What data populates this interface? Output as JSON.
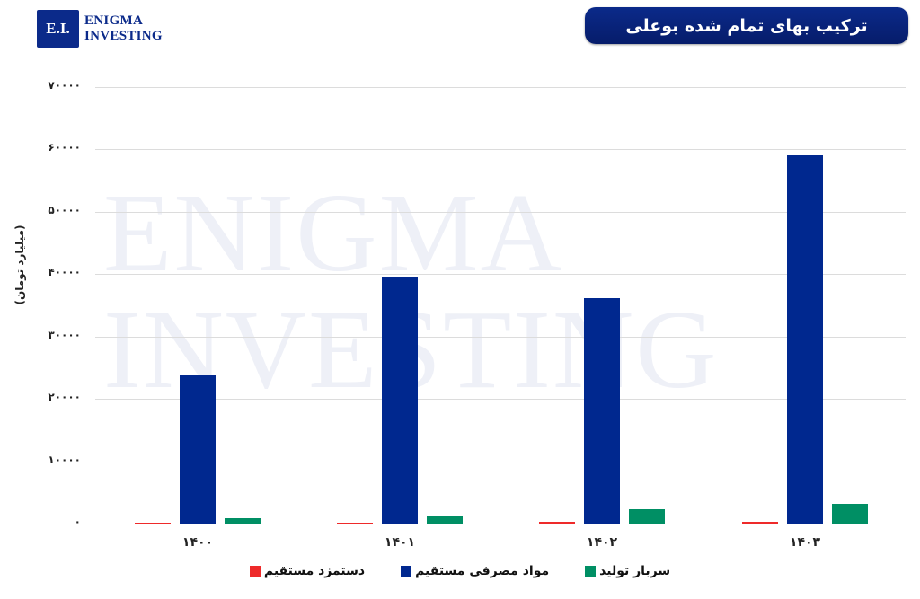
{
  "logo": {
    "box_text": "E.I.",
    "line1": "ENIGMA",
    "line2": "INVESTING"
  },
  "title": "ترکیب بهای تمام شده بوعلی",
  "watermark": {
    "line1": "ENIGMA",
    "line2": "INVESTING"
  },
  "colors": {
    "brand": "#0b2a8a",
    "red": "#ee2a2a",
    "blue": "#00288f",
    "green": "#008f64"
  },
  "chart_data": {
    "type": "bar",
    "title": "ترکیب بهای تمام شده بوعلی",
    "xlabel": "",
    "ylabel": "(میلیارد تومان)",
    "ylim": [
      0,
      70000
    ],
    "yticks": [
      "۰",
      "۱۰۰۰۰",
      "۲۰۰۰۰",
      "۳۰۰۰۰",
      "۴۰۰۰۰",
      "۵۰۰۰۰",
      "۶۰۰۰۰",
      "۷۰۰۰۰"
    ],
    "ytick_values": [
      0,
      10000,
      20000,
      30000,
      40000,
      50000,
      60000,
      70000
    ],
    "categories": [
      "۱۴۰۰",
      "۱۴۰۱",
      "۱۴۰۲",
      "۱۴۰۳"
    ],
    "grid": true,
    "legend_position": "bottom",
    "series": [
      {
        "name": "دستمزد مستقیم",
        "color": "#ee2a2a",
        "values": [
          200,
          200,
          300,
          350
        ]
      },
      {
        "name": "مواد مصرفی مستقیم",
        "color": "#00288f",
        "values": [
          23800,
          39600,
          36100,
          59000
        ]
      },
      {
        "name": "سربار تولید",
        "color": "#008f64",
        "values": [
          850,
          1200,
          2300,
          3200
        ]
      }
    ]
  }
}
